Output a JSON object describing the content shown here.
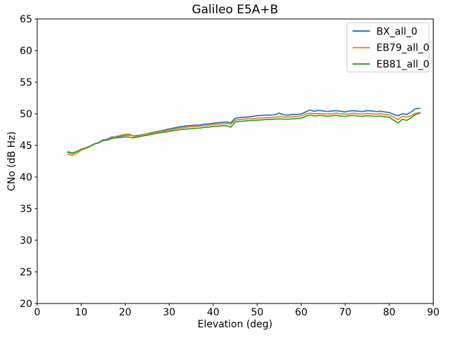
{
  "figure": {
    "background": "#ffffff",
    "spine_color": "#000000",
    "text_color": "#000000",
    "legend_border_color": "#cccccc"
  },
  "chart_data": {
    "type": "line",
    "title": "Galileo E5A+B",
    "xlabel": "Elevation (deg)",
    "ylabel": "CNo (dB Hz)",
    "xlim": [
      0,
      90
    ],
    "ylim": [
      20,
      65
    ],
    "xticks": [
      0,
      10,
      20,
      30,
      40,
      50,
      60,
      70,
      80,
      90
    ],
    "yticks": [
      20,
      25,
      30,
      35,
      40,
      45,
      50,
      55,
      60,
      65
    ],
    "grid": false,
    "legend_position": "upper right",
    "x": [
      7,
      8,
      9,
      10,
      11,
      12,
      13,
      14,
      15,
      16,
      17,
      18,
      19,
      20,
      21,
      22,
      23,
      24,
      25,
      26,
      27,
      28,
      29,
      30,
      31,
      32,
      33,
      34,
      35,
      36,
      37,
      38,
      39,
      40,
      41,
      42,
      43,
      44,
      45,
      46,
      47,
      48,
      49,
      50,
      51,
      52,
      53,
      54,
      55,
      56,
      57,
      58,
      59,
      60,
      61,
      62,
      63,
      64,
      65,
      66,
      67,
      68,
      69,
      70,
      71,
      72,
      73,
      74,
      75,
      76,
      77,
      78,
      79,
      80,
      81,
      82,
      83,
      84,
      85,
      86,
      87
    ],
    "series": [
      {
        "name": "BX_all_0",
        "color": "#1f77b4",
        "values": [
          43.9,
          43.75,
          44.0,
          44.35,
          44.6,
          44.85,
          45.25,
          45.45,
          45.9,
          46.0,
          46.35,
          46.3,
          46.45,
          46.6,
          46.65,
          46.5,
          46.6,
          46.7,
          46.85,
          47.0,
          47.15,
          47.3,
          47.45,
          47.6,
          47.75,
          47.9,
          48.0,
          48.1,
          48.15,
          48.2,
          48.25,
          48.35,
          48.4,
          48.5,
          48.6,
          48.65,
          48.7,
          48.6,
          49.3,
          49.4,
          49.45,
          49.5,
          49.6,
          49.7,
          49.75,
          49.8,
          49.8,
          49.85,
          50.1,
          49.85,
          49.8,
          49.9,
          49.9,
          49.95,
          50.3,
          50.6,
          50.4,
          50.55,
          50.45,
          50.35,
          50.45,
          50.5,
          50.4,
          50.3,
          50.45,
          50.5,
          50.4,
          50.35,
          50.5,
          50.45,
          50.35,
          50.4,
          50.3,
          50.2,
          49.9,
          49.7,
          50.0,
          49.9,
          50.3,
          50.8,
          50.85
        ]
      },
      {
        "name": "EB79_all_0",
        "color": "#ff7f0e",
        "values": [
          43.6,
          43.45,
          43.75,
          44.25,
          44.5,
          44.8,
          45.2,
          45.4,
          45.8,
          45.9,
          46.2,
          46.45,
          46.6,
          46.75,
          46.8,
          46.4,
          46.5,
          46.65,
          46.8,
          46.9,
          47.05,
          47.2,
          47.3,
          47.4,
          47.55,
          47.7,
          47.8,
          47.9,
          47.95,
          48.0,
          48.05,
          48.15,
          48.2,
          48.3,
          48.35,
          48.4,
          48.45,
          48.35,
          49.0,
          49.1,
          49.15,
          49.2,
          49.25,
          49.3,
          49.35,
          49.4,
          49.4,
          49.45,
          49.55,
          49.5,
          49.5,
          49.55,
          49.6,
          49.65,
          49.95,
          50.1,
          50.0,
          50.05,
          50.0,
          49.95,
          50.0,
          50.1,
          50.0,
          49.95,
          50.0,
          50.1,
          50.0,
          49.95,
          50.05,
          50.0,
          49.95,
          50.0,
          49.9,
          49.8,
          49.5,
          49.1,
          49.6,
          49.5,
          49.7,
          50.1,
          50.2
        ]
      },
      {
        "name": "EB81_all_0",
        "color": "#2ca02c",
        "values": [
          44.0,
          43.8,
          44.05,
          44.4,
          44.6,
          44.85,
          45.25,
          45.4,
          45.75,
          45.85,
          46.1,
          46.2,
          46.25,
          46.35,
          46.3,
          46.2,
          46.35,
          46.5,
          46.6,
          46.75,
          46.9,
          47.0,
          47.1,
          47.2,
          47.35,
          47.45,
          47.55,
          47.6,
          47.65,
          47.7,
          47.75,
          47.85,
          47.9,
          48.0,
          48.05,
          48.1,
          48.1,
          47.9,
          48.7,
          48.8,
          48.85,
          48.9,
          48.95,
          49.0,
          49.05,
          49.1,
          49.1,
          49.15,
          49.2,
          49.15,
          49.15,
          49.2,
          49.25,
          49.3,
          49.6,
          49.8,
          49.65,
          49.75,
          49.7,
          49.6,
          49.7,
          49.75,
          49.65,
          49.6,
          49.7,
          49.75,
          49.65,
          49.6,
          49.7,
          49.65,
          49.6,
          49.65,
          49.55,
          49.45,
          49.0,
          48.55,
          49.15,
          48.95,
          49.4,
          49.9,
          50.1
        ]
      }
    ]
  }
}
